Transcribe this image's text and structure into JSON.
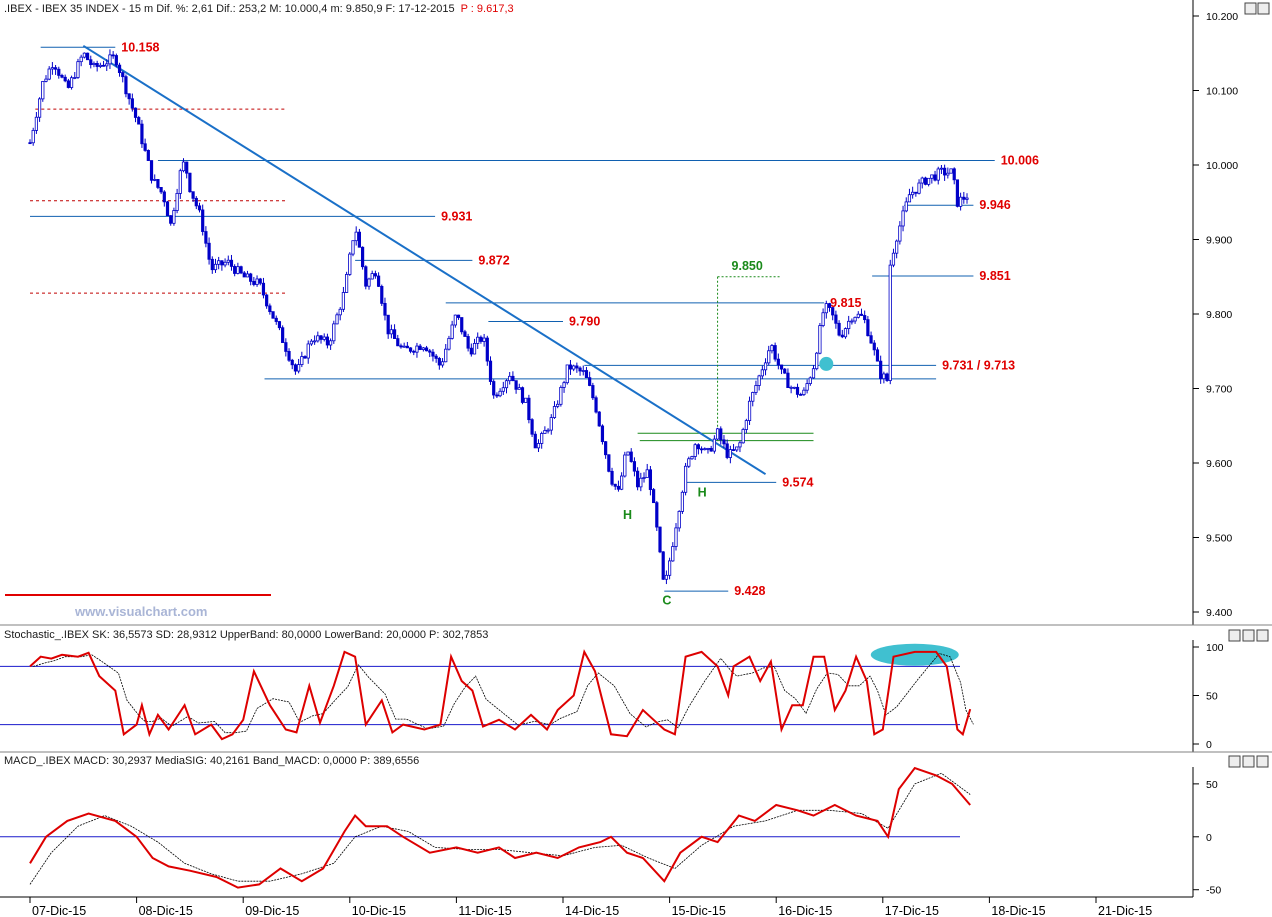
{
  "header": {
    "main": ".IBEX - IBEX 35 INDEX -  15 m  Dif. %: 2,61  Dif.: 253,2  M: 10.000,4  m: 9.850,9  F: 17-12-2015",
    "main_p": "P : 9.617,3",
    "stoch": "Stochastic_.IBEX SK: 36,5573  SD: 28,9312  UpperBand: 80,0000  LowerBand: 20,0000  P: 302,7853",
    "macd": "MACD_.IBEX MACD: 30,2937  MediaSIG: 40,2161  Band_MACD: 0,0000  P: 389,6556"
  },
  "watermark": "www.visualchart.com",
  "colors": {
    "candle": "#0000c8",
    "level_line": "#1060b0",
    "trend": "#1a70c8",
    "red": "#e00000",
    "green": "#1a8a1a",
    "highlight": "#40c0d0"
  },
  "chart_data": {
    "type": "line",
    "price": {
      "ylim": [
        9400,
        10200
      ],
      "y_ticks": [
        {
          "v": 9400,
          "label": "9.400"
        },
        {
          "v": 9500,
          "label": "9.500"
        },
        {
          "v": 9600,
          "label": "9.600"
        },
        {
          "v": 9700,
          "label": "9.700"
        },
        {
          "v": 9800,
          "label": "9.800"
        },
        {
          "v": 9900,
          "label": "9.900"
        },
        {
          "v": 10000,
          "label": "10.000"
        },
        {
          "v": 10100,
          "label": "10.100"
        },
        {
          "v": 10200,
          "label": "10.200"
        }
      ],
      "path": [
        [
          0,
          10030
        ],
        [
          0.12,
          10110
        ],
        [
          0.22,
          10140
        ],
        [
          0.35,
          10100
        ],
        [
          0.5,
          10150
        ],
        [
          0.6,
          10130
        ],
        [
          0.8,
          10145
        ],
        [
          1.0,
          10060
        ],
        [
          1.15,
          9980
        ],
        [
          1.25,
          9960
        ],
        [
          1.32,
          9920
        ],
        [
          1.4,
          9985
        ],
        [
          1.45,
          10005
        ],
        [
          1.5,
          9970
        ],
        [
          1.6,
          9930
        ],
        [
          1.7,
          9860
        ],
        [
          1.85,
          9870
        ],
        [
          2.0,
          9850
        ],
        [
          2.15,
          9840
        ],
        [
          2.3,
          9790
        ],
        [
          2.5,
          9720
        ],
        [
          2.65,
          9770
        ],
        [
          2.8,
          9760
        ],
        [
          2.95,
          9830
        ],
        [
          3.05,
          9920
        ],
        [
          3.15,
          9840
        ],
        [
          3.25,
          9860
        ],
        [
          3.35,
          9780
        ],
        [
          3.5,
          9750
        ],
        [
          3.7,
          9760
        ],
        [
          3.85,
          9730
        ],
        [
          4.0,
          9800
        ],
        [
          4.12,
          9750
        ],
        [
          4.25,
          9770
        ],
        [
          4.35,
          9690
        ],
        [
          4.5,
          9720
        ],
        [
          4.65,
          9680
        ],
        [
          4.75,
          9620
        ],
        [
          4.9,
          9660
        ],
        [
          5.05,
          9730
        ],
        [
          5.2,
          9720
        ],
        [
          5.3,
          9680
        ],
        [
          5.45,
          9580
        ],
        [
          5.52,
          9560
        ],
        [
          5.6,
          9620
        ],
        [
          5.7,
          9570
        ],
        [
          5.8,
          9590
        ],
        [
          5.88,
          9510
        ],
        [
          5.95,
          9428
        ],
        [
          6.05,
          9510
        ],
        [
          6.15,
          9590
        ],
        [
          6.25,
          9630
        ],
        [
          6.35,
          9610
        ],
        [
          6.45,
          9640
        ],
        [
          6.55,
          9610
        ],
        [
          6.65,
          9620
        ],
        [
          6.75,
          9680
        ],
        [
          6.85,
          9720
        ],
        [
          6.95,
          9760
        ],
        [
          7.05,
          9720
        ],
        [
          7.15,
          9700
        ],
        [
          7.25,
          9690
        ],
        [
          7.35,
          9730
        ],
        [
          7.45,
          9810
        ],
        [
          7.52,
          9800
        ],
        [
          7.6,
          9770
        ],
        [
          7.72,
          9800
        ],
        [
          7.82,
          9795
        ],
        [
          7.9,
          9760
        ],
        [
          7.97,
          9720
        ],
        [
          8.05,
          9710
        ],
        [
          8.06,
          9860
        ],
        [
          8.12,
          9900
        ],
        [
          8.25,
          9960
        ],
        [
          8.4,
          9980
        ],
        [
          8.55,
          9990
        ],
        [
          8.65,
          9990
        ],
        [
          8.7,
          9950
        ],
        [
          8.8,
          9960
        ]
      ],
      "levels": [
        {
          "v": 10158,
          "label": "10.158",
          "x0": 0.1,
          "x1": 0.8
        },
        {
          "v": 10006,
          "label": "10.006",
          "x0": 1.2,
          "x1": 9.05
        },
        {
          "v": 9946,
          "label": "9.946",
          "x0": 8.2,
          "x1": 8.85
        },
        {
          "v": 9931,
          "label": "9.931",
          "x0": 0.0,
          "x1": 3.8
        },
        {
          "v": 9872,
          "label": "9.872",
          "x0": 3.05,
          "x1": 4.15
        },
        {
          "v": 9851,
          "label": "9.851",
          "x0": 7.9,
          "x1": 8.85
        },
        {
          "v": 9815,
          "label": "9.815",
          "x0": 3.9,
          "x1": 7.45
        },
        {
          "v": 9790,
          "label": "9.790",
          "x0": 4.3,
          "x1": 5.0
        },
        {
          "v": 9731,
          "label": "9.731 / 9.713",
          "x0": 5.2,
          "x1": 8.5
        },
        {
          "v": 9713,
          "label": "",
          "x0": 2.2,
          "x1": 8.5
        },
        {
          "v": 9574,
          "label": "9.574",
          "x0": 6.15,
          "x1": 7.0
        },
        {
          "v": 9428,
          "label": "9.428",
          "x0": 5.95,
          "x1": 6.55
        }
      ],
      "dashed_levels": [
        {
          "v": 10075,
          "x0": 0.05,
          "x1": 2.4
        },
        {
          "v": 9952,
          "x0": 0.0,
          "x1": 2.4
        },
        {
          "v": 9828,
          "x0": 0.0,
          "x1": 2.4
        }
      ],
      "green_level": {
        "v": 9850,
        "label": "9.850",
        "x0": 6.45,
        "x1": 7.05
      },
      "green_lines": [
        {
          "v": 9640,
          "x0": 5.7,
          "x1": 7.35
        },
        {
          "v": 9630,
          "x0": 5.72,
          "x1": 7.35
        }
      ],
      "trendline": {
        "from": [
          0.5,
          10160
        ],
        "to": [
          6.9,
          9585
        ]
      },
      "pattern_labels": [
        {
          "text": "H",
          "x": 5.6,
          "v": 9525,
          "color": "#1a8a1a"
        },
        {
          "text": "H",
          "x": 6.3,
          "v": 9555,
          "color": "#1a8a1a"
        },
        {
          "text": "C",
          "x": 5.97,
          "v": 9410,
          "color": "#1a8a1a"
        }
      ],
      "highlight_point": {
        "x": 7.47,
        "v": 9733
      }
    },
    "stochastic": {
      "ylim": [
        0,
        100
      ],
      "bands": [
        80,
        20
      ],
      "y_ticks": [
        {
          "v": 0,
          "label": "0"
        },
        {
          "v": 50,
          "label": "50"
        },
        {
          "v": 100,
          "label": "100"
        }
      ],
      "sk": [
        [
          0,
          80
        ],
        [
          0.1,
          90
        ],
        [
          0.2,
          88
        ],
        [
          0.3,
          92
        ],
        [
          0.45,
          90
        ],
        [
          0.55,
          94
        ],
        [
          0.65,
          70
        ],
        [
          0.8,
          55
        ],
        [
          0.88,
          10
        ],
        [
          1.0,
          20
        ],
        [
          1.05,
          40
        ],
        [
          1.12,
          10
        ],
        [
          1.2,
          30
        ],
        [
          1.3,
          15
        ],
        [
          1.45,
          40
        ],
        [
          1.55,
          10
        ],
        [
          1.7,
          20
        ],
        [
          1.8,
          5
        ],
        [
          1.9,
          10
        ],
        [
          2.0,
          25
        ],
        [
          2.1,
          75
        ],
        [
          2.25,
          40
        ],
        [
          2.4,
          15
        ],
        [
          2.5,
          12
        ],
        [
          2.62,
          60
        ],
        [
          2.72,
          22
        ],
        [
          2.85,
          60
        ],
        [
          2.95,
          95
        ],
        [
          3.05,
          90
        ],
        [
          3.15,
          20
        ],
        [
          3.3,
          45
        ],
        [
          3.4,
          12
        ],
        [
          3.5,
          20
        ],
        [
          3.7,
          15
        ],
        [
          3.85,
          20
        ],
        [
          3.95,
          90
        ],
        [
          4.05,
          65
        ],
        [
          4.15,
          55
        ],
        [
          4.25,
          18
        ],
        [
          4.4,
          25
        ],
        [
          4.55,
          15
        ],
        [
          4.7,
          30
        ],
        [
          4.85,
          15
        ],
        [
          4.95,
          35
        ],
        [
          5.1,
          50
        ],
        [
          5.2,
          95
        ],
        [
          5.3,
          75
        ],
        [
          5.45,
          10
        ],
        [
          5.6,
          8
        ],
        [
          5.75,
          35
        ],
        [
          5.85,
          25
        ],
        [
          5.95,
          15
        ],
        [
          6.05,
          10
        ],
        [
          6.15,
          90
        ],
        [
          6.3,
          95
        ],
        [
          6.45,
          80
        ],
        [
          6.55,
          50
        ],
        [
          6.6,
          80
        ],
        [
          6.75,
          90
        ],
        [
          6.85,
          65
        ],
        [
          6.95,
          85
        ],
        [
          7.05,
          15
        ],
        [
          7.15,
          40
        ],
        [
          7.25,
          40
        ],
        [
          7.35,
          90
        ],
        [
          7.45,
          90
        ],
        [
          7.55,
          35
        ],
        [
          7.65,
          55
        ],
        [
          7.75,
          90
        ],
        [
          7.85,
          65
        ],
        [
          7.92,
          10
        ],
        [
          8.0,
          15
        ],
        [
          8.1,
          90
        ],
        [
          8.3,
          95
        ],
        [
          8.5,
          95
        ],
        [
          8.6,
          80
        ],
        [
          8.7,
          15
        ],
        [
          8.75,
          10
        ],
        [
          8.82,
          36
        ]
      ],
      "highlight": {
        "x": 8.3,
        "v": 92
      }
    },
    "macd": {
      "ylim": [
        -55,
        65
      ],
      "zero": 0,
      "y_ticks": [
        {
          "v": -50,
          "label": "-50"
        },
        {
          "v": 0,
          "label": "0"
        },
        {
          "v": 50,
          "label": "50"
        }
      ],
      "macd": [
        [
          0,
          -25
        ],
        [
          0.15,
          0
        ],
        [
          0.35,
          15
        ],
        [
          0.55,
          22
        ],
        [
          0.8,
          15
        ],
        [
          1.0,
          0
        ],
        [
          1.15,
          -20
        ],
        [
          1.3,
          -28
        ],
        [
          1.5,
          -32
        ],
        [
          1.75,
          -38
        ],
        [
          1.95,
          -48
        ],
        [
          2.15,
          -45
        ],
        [
          2.35,
          -30
        ],
        [
          2.55,
          -42
        ],
        [
          2.75,
          -30
        ],
        [
          2.95,
          5
        ],
        [
          3.05,
          20
        ],
        [
          3.15,
          10
        ],
        [
          3.35,
          10
        ],
        [
          3.5,
          0
        ],
        [
          3.75,
          -15
        ],
        [
          4.0,
          -10
        ],
        [
          4.2,
          -15
        ],
        [
          4.4,
          -10
        ],
        [
          4.55,
          -20
        ],
        [
          4.75,
          -15
        ],
        [
          4.95,
          -20
        ],
        [
          5.15,
          -10
        ],
        [
          5.35,
          -5
        ],
        [
          5.45,
          0
        ],
        [
          5.6,
          -15
        ],
        [
          5.75,
          -20
        ],
        [
          5.95,
          -42
        ],
        [
          6.1,
          -15
        ],
        [
          6.3,
          0
        ],
        [
          6.45,
          -5
        ],
        [
          6.65,
          20
        ],
        [
          6.8,
          15
        ],
        [
          7.0,
          30
        ],
        [
          7.2,
          25
        ],
        [
          7.35,
          20
        ],
        [
          7.55,
          30
        ],
        [
          7.75,
          20
        ],
        [
          7.95,
          15
        ],
        [
          8.05,
          0
        ],
        [
          8.15,
          45
        ],
        [
          8.3,
          65
        ],
        [
          8.5,
          58
        ],
        [
          8.65,
          50
        ],
        [
          8.82,
          30
        ]
      ],
      "signal": [
        [
          0,
          -45
        ],
        [
          0.2,
          -15
        ],
        [
          0.45,
          10
        ],
        [
          0.7,
          20
        ],
        [
          0.95,
          10
        ],
        [
          1.2,
          -5
        ],
        [
          1.45,
          -25
        ],
        [
          1.7,
          -35
        ],
        [
          1.95,
          -42
        ],
        [
          2.25,
          -42
        ],
        [
          2.55,
          -35
        ],
        [
          2.85,
          -25
        ],
        [
          3.05,
          0
        ],
        [
          3.3,
          10
        ],
        [
          3.55,
          5
        ],
        [
          3.8,
          -10
        ],
        [
          4.1,
          -12
        ],
        [
          4.4,
          -12
        ],
        [
          4.7,
          -15
        ],
        [
          5.0,
          -18
        ],
        [
          5.3,
          -10
        ],
        [
          5.55,
          -8
        ],
        [
          5.8,
          -20
        ],
        [
          6.05,
          -30
        ],
        [
          6.3,
          -8
        ],
        [
          6.6,
          10
        ],
        [
          6.9,
          15
        ],
        [
          7.2,
          25
        ],
        [
          7.5,
          25
        ],
        [
          7.8,
          22
        ],
        [
          8.05,
          8
        ],
        [
          8.3,
          50
        ],
        [
          8.55,
          60
        ],
        [
          8.82,
          40
        ]
      ]
    },
    "x_labels": [
      "07-Dic-15",
      "08-Dic-15",
      "09-Dic-15",
      "10-Dic-15",
      "11-Dic-15",
      "14-Dic-15",
      "15-Dic-15",
      "16-Dic-15",
      "17-Dic-15",
      "18-Dic-15",
      "21-Dic-15"
    ]
  }
}
